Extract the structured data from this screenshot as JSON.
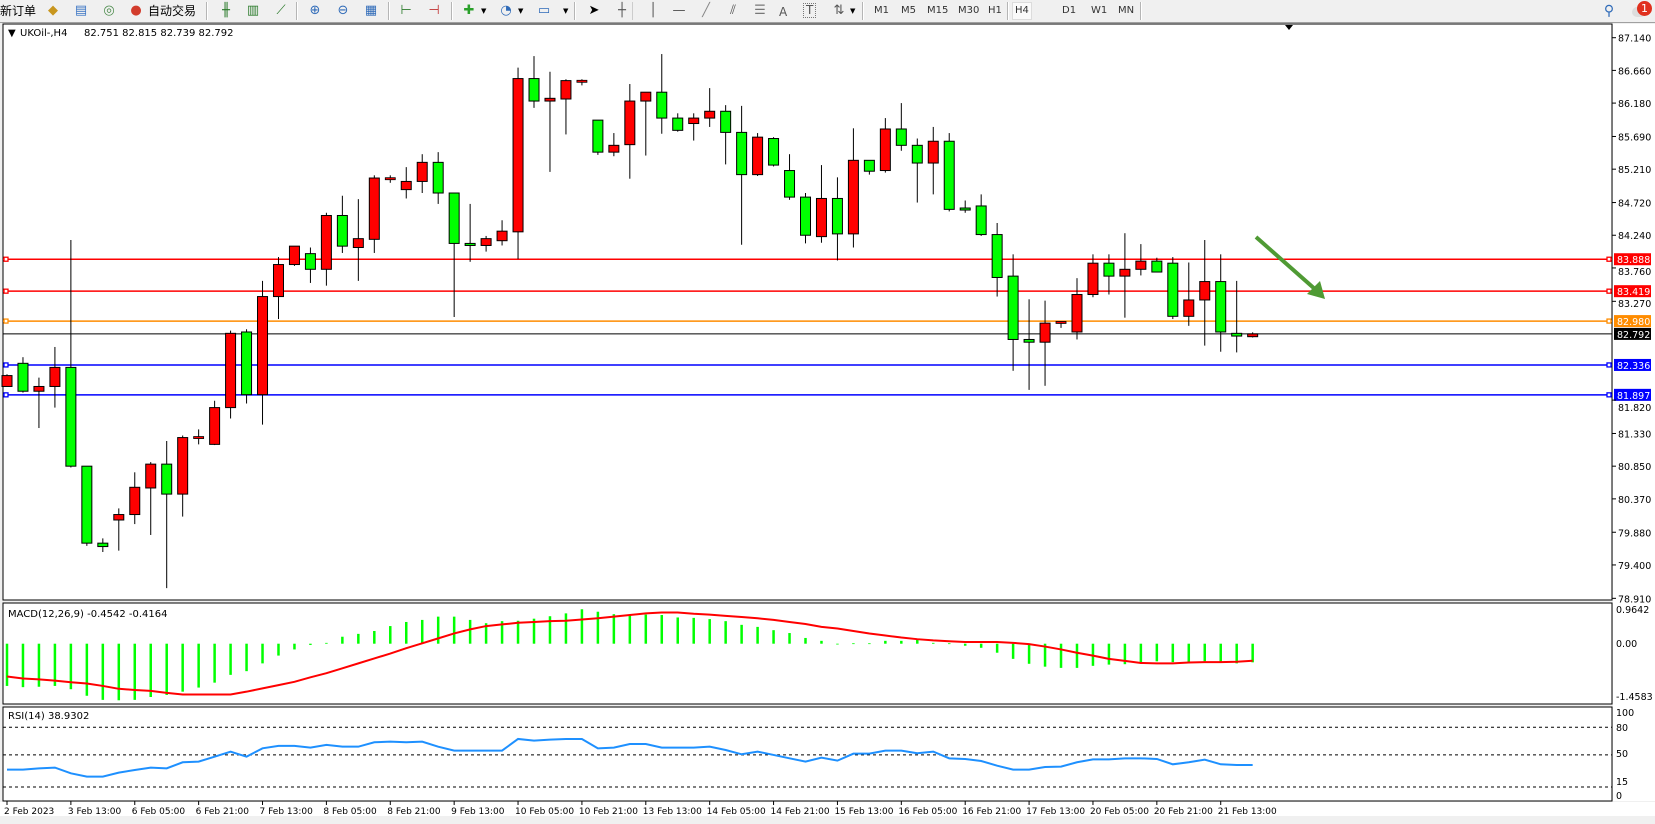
{
  "toolbar": {
    "new_order_label": "新订单",
    "autotrading_label": "自动交易",
    "icons": [
      "market-watch-icon",
      "data-window-icon",
      "signals-icon",
      "autotrading-icon",
      "bar-chart-icon",
      "candlestick-chart-icon",
      "line-chart-icon",
      "zoom-in-icon",
      "zoom-out-icon",
      "tile-windows-icon",
      "auto-scroll-icon",
      "chart-shift-icon",
      "new-chart-icon",
      "periods-icon",
      "templates-icon",
      "cursor-icon",
      "crosshair-icon",
      "vertical-line-icon",
      "horizontal-line-icon",
      "trendline-icon",
      "equidistant-channel-icon",
      "fibonacci-icon",
      "text-icon",
      "text-label-icon",
      "arrows-icon",
      "search-icon",
      "notification-icon"
    ],
    "text_tool": "A",
    "text_label_tool": "T",
    "timeframes": [
      "M1",
      "M5",
      "M15",
      "M30",
      "H1",
      "H4",
      "D1",
      "W1",
      "MN"
    ],
    "active_timeframe": "H4",
    "notification_count": "1"
  },
  "chart": {
    "symbol": "UKOil-,H4",
    "ohlc": "82.751 82.815 82.739 82.792",
    "current_price": "82.792",
    "up_color": "#ff0000",
    "down_color": "#00ff00",
    "price_axis": [
      "87.140",
      "86.660",
      "86.180",
      "85.690",
      "85.210",
      "84.720",
      "84.240",
      "83.760",
      "83.270",
      "81.820",
      "81.330",
      "80.850",
      "80.370",
      "79.880",
      "79.400",
      "78.910"
    ],
    "levels": [
      {
        "price": "83.888",
        "color": "#ff0000"
      },
      {
        "price": "83.419",
        "color": "#ff0000"
      },
      {
        "price": "82.980",
        "color": "#ff8c00"
      },
      {
        "price": "82.336",
        "color": "#0000ff"
      },
      {
        "price": "81.897",
        "color": "#0000ff"
      }
    ],
    "annotation_arrow": {
      "icon": "arrow-down-right-icon",
      "color": "#4f9a34"
    },
    "time_axis": [
      "2 Feb 2023",
      "3 Feb 13:00",
      "6 Feb 05:00",
      "6 Feb 21:00",
      "7 Feb 13:00",
      "8 Feb 05:00",
      "8 Feb 21:00",
      "9 Feb 13:00",
      "10 Feb 05:00",
      "10 Feb 21:00",
      "13 Feb 13:00",
      "14 Feb 05:00",
      "14 Feb 21:00",
      "15 Feb 13:00",
      "16 Feb 05:00",
      "16 Feb 21:00",
      "17 Feb 13:00",
      "20 Feb 05:00",
      "20 Feb 21:00",
      "21 Feb 13:00"
    ]
  },
  "macd": {
    "label": "MACD(12,26,9) -0.4542 -0.4164",
    "axis": [
      "0.9642",
      "0.00",
      "-1.4583"
    ],
    "hist_color": "#00ff00",
    "signal_color": "#ff0000"
  },
  "rsi": {
    "label": "RSI(14) 38.9302",
    "axis": [
      "100",
      "80",
      "50",
      "15",
      "0"
    ],
    "levels": [
      80,
      50,
      15
    ],
    "color": "#1e90ff"
  },
  "chart_data": [
    {
      "type": "candlestick",
      "title": "UKOil-,H4",
      "ylim": [
        78.91,
        87.14
      ],
      "columns": [
        "open",
        "high",
        "low",
        "close"
      ],
      "candles": [
        [
          82.02,
          82.2,
          82.02,
          82.18
        ],
        [
          82.36,
          82.45,
          81.93,
          81.95
        ],
        [
          81.95,
          82.15,
          81.41,
          82.02
        ],
        [
          82.02,
          82.6,
          81.71,
          82.3
        ],
        [
          82.3,
          84.17,
          80.83,
          80.85
        ],
        [
          80.85,
          80.85,
          79.68,
          79.72
        ],
        [
          79.72,
          79.79,
          79.59,
          79.67
        ],
        [
          80.06,
          80.23,
          79.61,
          80.14
        ],
        [
          80.14,
          80.76,
          80.0,
          80.54
        ],
        [
          80.53,
          80.91,
          79.84,
          80.88
        ],
        [
          80.88,
          81.22,
          79.06,
          80.44
        ],
        [
          80.44,
          81.3,
          80.11,
          81.27
        ],
        [
          81.27,
          81.39,
          81.17,
          81.27
        ],
        [
          81.17,
          81.81,
          81.16,
          81.71
        ],
        [
          81.71,
          82.84,
          81.55,
          82.8
        ],
        [
          82.82,
          82.86,
          81.77,
          81.9
        ],
        [
          81.9,
          83.57,
          81.46,
          83.34
        ],
        [
          83.34,
          83.92,
          83.01,
          83.81
        ],
        [
          83.81,
          84.08,
          83.79,
          84.08
        ],
        [
          83.97,
          84.06,
          83.54,
          83.74
        ],
        [
          83.74,
          84.57,
          83.5,
          84.53
        ],
        [
          84.53,
          84.82,
          83.98,
          84.08
        ],
        [
          84.06,
          84.77,
          83.57,
          84.19
        ],
        [
          84.18,
          85.12,
          83.98,
          85.08
        ],
        [
          85.07,
          85.12,
          85.01,
          85.07
        ],
        [
          84.91,
          85.24,
          84.78,
          85.03
        ],
        [
          85.03,
          85.43,
          84.86,
          85.31
        ],
        [
          85.31,
          85.46,
          84.7,
          84.86
        ],
        [
          84.86,
          84.86,
          83.04,
          84.12
        ],
        [
          84.12,
          84.7,
          83.85,
          84.09
        ],
        [
          84.09,
          84.23,
          84.0,
          84.19
        ],
        [
          84.16,
          84.46,
          84.09,
          84.3
        ],
        [
          84.29,
          86.7,
          83.89,
          86.54
        ],
        [
          86.54,
          86.87,
          86.11,
          86.21
        ],
        [
          86.21,
          86.64,
          85.17,
          86.25
        ],
        [
          86.24,
          86.53,
          85.72,
          86.51
        ],
        [
          86.5,
          86.53,
          86.44,
          86.5
        ],
        [
          85.93,
          85.93,
          85.42,
          85.46
        ],
        [
          85.46,
          85.74,
          85.4,
          85.56
        ],
        [
          85.57,
          86.46,
          85.07,
          86.21
        ],
        [
          86.21,
          86.34,
          85.41,
          86.34
        ],
        [
          86.34,
          86.9,
          85.73,
          85.96
        ],
        [
          85.96,
          86.03,
          85.76,
          85.78
        ],
        [
          85.88,
          86.03,
          85.63,
          85.96
        ],
        [
          85.96,
          86.4,
          85.83,
          86.06
        ],
        [
          86.06,
          86.15,
          85.28,
          85.75
        ],
        [
          85.75,
          86.14,
          84.1,
          85.13
        ],
        [
          85.13,
          85.74,
          85.11,
          85.68
        ],
        [
          85.66,
          85.68,
          85.25,
          85.27
        ],
        [
          85.19,
          85.43,
          84.76,
          84.8
        ],
        [
          84.8,
          84.86,
          84.12,
          84.24
        ],
        [
          84.22,
          85.27,
          84.13,
          84.78
        ],
        [
          84.78,
          85.09,
          83.87,
          84.26
        ],
        [
          84.26,
          85.81,
          84.06,
          85.34
        ],
        [
          85.34,
          85.34,
          85.13,
          85.18
        ],
        [
          85.19,
          85.96,
          85.16,
          85.8
        ],
        [
          85.8,
          86.18,
          85.48,
          85.56
        ],
        [
          85.56,
          85.66,
          84.72,
          85.3
        ],
        [
          85.3,
          85.83,
          84.84,
          85.62
        ],
        [
          85.62,
          85.74,
          84.59,
          84.62
        ],
        [
          84.64,
          84.75,
          84.57,
          84.61
        ],
        [
          84.67,
          84.84,
          84.23,
          84.25
        ],
        [
          84.25,
          84.42,
          83.34,
          83.62
        ],
        [
          83.64,
          83.96,
          82.25,
          82.71
        ],
        [
          82.71,
          83.3,
          81.97,
          82.67
        ],
        [
          82.67,
          83.28,
          82.03,
          82.95
        ],
        [
          82.95,
          82.96,
          82.88,
          82.96
        ],
        [
          82.82,
          83.61,
          82.71,
          83.37
        ],
        [
          83.37,
          83.96,
          83.33,
          83.83
        ],
        [
          83.83,
          83.96,
          83.37,
          83.64
        ],
        [
          83.64,
          84.27,
          83.03,
          83.74
        ],
        [
          83.74,
          84.11,
          83.65,
          83.86
        ],
        [
          83.86,
          83.91,
          83.7,
          83.7
        ],
        [
          83.83,
          83.92,
          83.01,
          83.05
        ],
        [
          83.05,
          83.84,
          82.91,
          83.29
        ],
        [
          83.29,
          84.17,
          82.62,
          83.56
        ],
        [
          83.56,
          83.96,
          82.53,
          82.82
        ],
        [
          82.8,
          83.57,
          82.52,
          82.76
        ],
        [
          82.751,
          82.815,
          82.739,
          82.792
        ]
      ]
    },
    {
      "type": "bar+line",
      "title": "MACD(12,26,9)",
      "ylim": [
        -1.4583,
        0.9642
      ],
      "series": [
        {
          "name": "MACD",
          "values": [
            -1.03,
            -1.06,
            -1.05,
            -1.03,
            -1.11,
            -1.27,
            -1.37,
            -1.38,
            -1.37,
            -1.3,
            -1.25,
            -1.17,
            -1.07,
            -0.95,
            -0.76,
            -0.67,
            -0.48,
            -0.29,
            -0.14,
            -0.03,
            0.02,
            0.17,
            0.24,
            0.31,
            0.43,
            0.53,
            0.58,
            0.66,
            0.66,
            0.58,
            0.5,
            0.55,
            0.56,
            0.61,
            0.67,
            0.74,
            0.84,
            0.78,
            0.72,
            0.69,
            0.71,
            0.7,
            0.64,
            0.63,
            0.6,
            0.55,
            0.46,
            0.41,
            0.33,
            0.26,
            0.14,
            0.07,
            -0.01,
            0.01,
            0.01,
            0.07,
            0.07,
            0.09,
            0.02,
            0.01,
            -0.05,
            -0.1,
            -0.22,
            -0.37,
            -0.49,
            -0.56,
            -0.59,
            -0.59,
            -0.54,
            -0.51,
            -0.5,
            -0.45,
            -0.43,
            -0.45,
            -0.46,
            -0.43,
            -0.45,
            -0.48,
            -0.4542
          ]
        },
        {
          "name": "Signal",
          "values": [
            -0.8,
            -0.85,
            -0.87,
            -0.9,
            -0.94,
            -0.97,
            -1.03,
            -1.1,
            -1.13,
            -1.15,
            -1.2,
            -1.24,
            -1.24,
            -1.24,
            -1.24,
            -1.17,
            -1.09,
            -1.01,
            -0.93,
            -0.82,
            -0.72,
            -0.6,
            -0.48,
            -0.36,
            -0.24,
            -0.11,
            0.01,
            0.13,
            0.25,
            0.35,
            0.43,
            0.47,
            0.51,
            0.53,
            0.55,
            0.56,
            0.59,
            0.62,
            0.66,
            0.7,
            0.74,
            0.76,
            0.76,
            0.73,
            0.71,
            0.68,
            0.65,
            0.62,
            0.58,
            0.53,
            0.48,
            0.41,
            0.37,
            0.31,
            0.25,
            0.2,
            0.15,
            0.11,
            0.08,
            0.06,
            0.04,
            0.04,
            0.04,
            0.02,
            -0.01,
            -0.07,
            -0.14,
            -0.22,
            -0.29,
            -0.37,
            -0.42,
            -0.47,
            -0.48,
            -0.48,
            -0.46,
            -0.45,
            -0.45,
            -0.44,
            -0.4164
          ]
        }
      ]
    },
    {
      "type": "line",
      "title": "RSI(14)",
      "ylim": [
        0,
        100
      ],
      "series": [
        {
          "name": "RSI",
          "values": [
            33.9,
            33.9,
            35.3,
            36.1,
            29.9,
            26.3,
            26.3,
            30.6,
            33.5,
            36.1,
            35.3,
            41.9,
            42.6,
            48.0,
            53.5,
            48.0,
            57.1,
            59.7,
            59.7,
            57.9,
            60.8,
            58.9,
            58.9,
            63.7,
            64.4,
            63.7,
            64.4,
            58.9,
            54.6,
            54.6,
            54.6,
            54.6,
            67.3,
            65.5,
            66.6,
            67.3,
            67.3,
            57.1,
            57.9,
            61.8,
            61.8,
            57.9,
            57.9,
            57.9,
            58.9,
            55.3,
            50.6,
            53.5,
            49.9,
            46.2,
            42.6,
            47.0,
            43.7,
            51.3,
            51.3,
            54.6,
            54.6,
            51.7,
            53.5,
            46.2,
            45.5,
            43.3,
            38.2,
            33.9,
            33.9,
            36.8,
            37.2,
            41.9,
            45.1,
            45.1,
            46.2,
            46.2,
            45.5,
            39.7,
            41.9,
            44.8,
            39.7,
            39.0,
            38.9302
          ]
        }
      ]
    }
  ]
}
